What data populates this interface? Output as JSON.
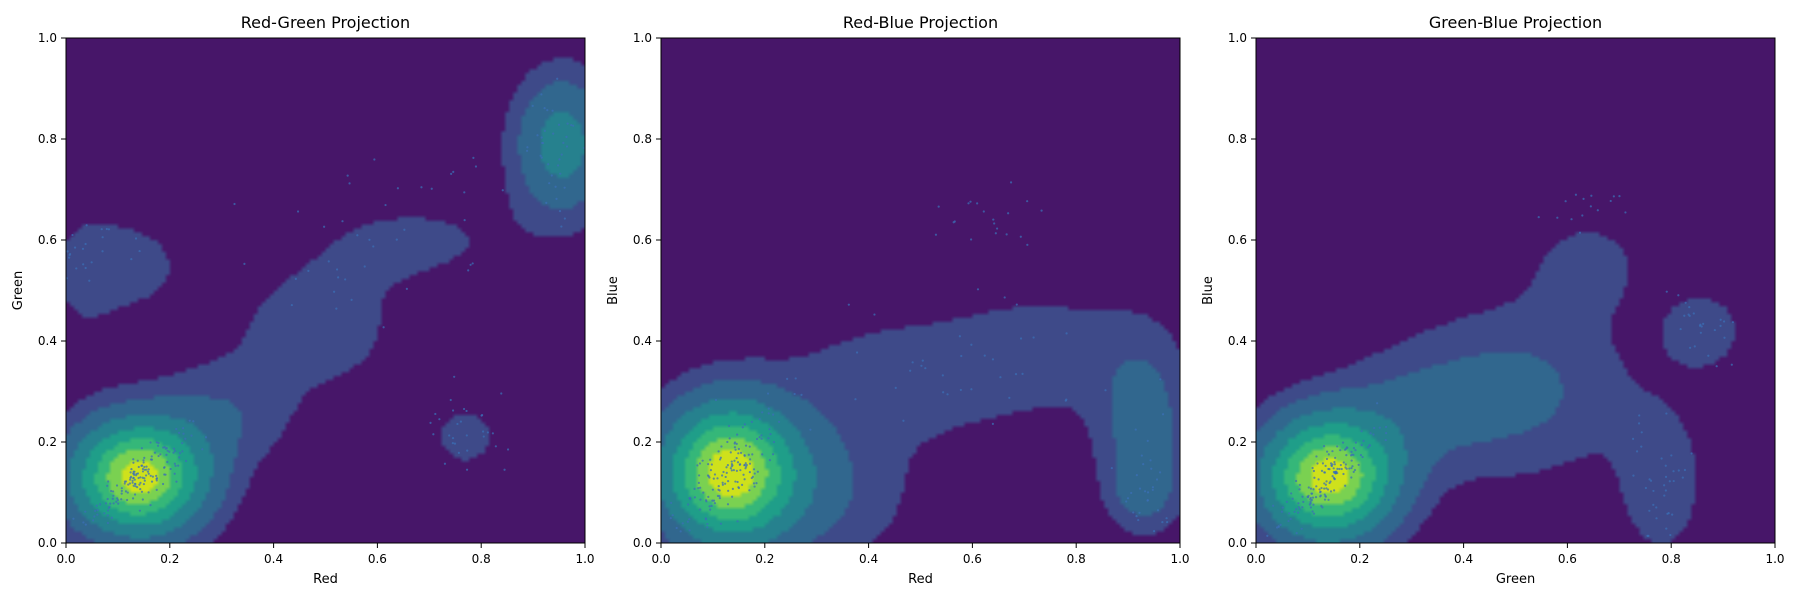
{
  "figure": {
    "colors": {
      "background": "#ffffff",
      "scatter": "#3b6fb5",
      "levels": [
        "#471669",
        "#3e4a89",
        "#31678e",
        "#26818e",
        "#1f9e89",
        "#35b779",
        "#7ad151",
        "#cfe11c"
      ]
    }
  },
  "chart_data": [
    {
      "type": "contour",
      "title": "Red-Green Projection",
      "xlabel": "Red",
      "ylabel": "Green",
      "xlim": [
        0,
        1
      ],
      "ylim": [
        0,
        1
      ],
      "xticks": [
        "0.0",
        "0.2",
        "0.4",
        "0.6",
        "0.8",
        "1.0"
      ],
      "yticks": [
        "0.0",
        "0.2",
        "0.4",
        "0.6",
        "0.8",
        "1.0"
      ],
      "components": [
        {
          "x": 0.14,
          "y": 0.13,
          "sx": 0.085,
          "sy": 0.075,
          "w": 1.0
        },
        {
          "x": 0.955,
          "y": 0.79,
          "sx": 0.06,
          "sy": 0.09,
          "w": 0.36
        },
        {
          "x": 0.48,
          "y": 0.42,
          "sx": 0.13,
          "sy": 0.1,
          "w": 0.09
        },
        {
          "x": 0.68,
          "y": 0.6,
          "sx": 0.16,
          "sy": 0.07,
          "w": 0.07
        },
        {
          "x": 0.12,
          "y": 0.55,
          "sx": 0.08,
          "sy": 0.07,
          "w": 0.09
        },
        {
          "x": 0.77,
          "y": 0.21,
          "sx": 0.05,
          "sy": 0.05,
          "w": 0.09
        },
        {
          "x": 0.03,
          "y": 0.52,
          "sx": 0.05,
          "sy": 0.12,
          "w": 0.05
        },
        {
          "x": 0.3,
          "y": 0.25,
          "sx": 0.09,
          "sy": 0.07,
          "w": 0.12
        }
      ],
      "scatter_clusters": [
        {
          "x": 0.14,
          "y": 0.13,
          "sx": 0.05,
          "sy": 0.045,
          "n": 160,
          "corr": 0.85
        },
        {
          "x": 0.95,
          "y": 0.78,
          "sx": 0.03,
          "sy": 0.06,
          "n": 40,
          "corr": 0.0
        },
        {
          "x": 0.6,
          "y": 0.6,
          "sx": 0.15,
          "sy": 0.08,
          "n": 40,
          "corr": 0.3
        },
        {
          "x": 0.77,
          "y": 0.21,
          "sx": 0.04,
          "sy": 0.04,
          "n": 30,
          "corr": 0.0
        },
        {
          "x": 0.05,
          "y": 0.6,
          "sx": 0.04,
          "sy": 0.05,
          "n": 25,
          "corr": 0.0
        }
      ]
    },
    {
      "type": "contour",
      "title": "Red-Blue Projection",
      "xlabel": "Red",
      "ylabel": "Blue",
      "xlim": [
        0,
        1
      ],
      "ylim": [
        0,
        1
      ],
      "xticks": [
        "0.0",
        "0.2",
        "0.4",
        "0.6",
        "0.8",
        "1.0"
      ],
      "yticks": [
        "0.0",
        "0.2",
        "0.4",
        "0.6",
        "0.8",
        "1.0"
      ],
      "components": [
        {
          "x": 0.13,
          "y": 0.14,
          "sx": 0.085,
          "sy": 0.09,
          "w": 1.0
        },
        {
          "x": 0.93,
          "y": 0.22,
          "sx": 0.06,
          "sy": 0.12,
          "w": 0.2
        },
        {
          "x": 0.93,
          "y": 0.1,
          "sx": 0.04,
          "sy": 0.04,
          "w": 0.12
        },
        {
          "x": 0.45,
          "y": 0.32,
          "sx": 0.16,
          "sy": 0.09,
          "w": 0.1
        },
        {
          "x": 0.75,
          "y": 0.38,
          "sx": 0.14,
          "sy": 0.09,
          "w": 0.09
        },
        {
          "x": 0.3,
          "y": 0.1,
          "sx": 0.12,
          "sy": 0.1,
          "w": 0.14
        }
      ],
      "scatter_clusters": [
        {
          "x": 0.13,
          "y": 0.14,
          "sx": 0.05,
          "sy": 0.06,
          "n": 160,
          "corr": 0.7
        },
        {
          "x": 0.62,
          "y": 0.64,
          "sx": 0.05,
          "sy": 0.03,
          "n": 20,
          "corr": 0.0
        },
        {
          "x": 0.93,
          "y": 0.12,
          "sx": 0.03,
          "sy": 0.05,
          "n": 30,
          "corr": 0.0
        },
        {
          "x": 0.55,
          "y": 0.35,
          "sx": 0.2,
          "sy": 0.08,
          "n": 40,
          "corr": 0.0
        }
      ]
    },
    {
      "type": "contour",
      "title": "Green-Blue Projection",
      "xlabel": "Green",
      "ylabel": "Blue",
      "xlim": [
        0,
        1
      ],
      "ylim": [
        0,
        1
      ],
      "xticks": [
        "0.0",
        "0.2",
        "0.4",
        "0.6",
        "0.8",
        "1.0"
      ],
      "yticks": [
        "0.0",
        "0.2",
        "0.4",
        "0.6",
        "0.8",
        "1.0"
      ],
      "components": [
        {
          "x": 0.14,
          "y": 0.13,
          "sx": 0.085,
          "sy": 0.08,
          "w": 1.0
        },
        {
          "x": 0.5,
          "y": 0.3,
          "sx": 0.14,
          "sy": 0.11,
          "w": 0.17
        },
        {
          "x": 0.78,
          "y": 0.12,
          "sx": 0.06,
          "sy": 0.11,
          "w": 0.11
        },
        {
          "x": 0.86,
          "y": 0.42,
          "sx": 0.05,
          "sy": 0.05,
          "w": 0.13
        },
        {
          "x": 0.64,
          "y": 0.55,
          "sx": 0.09,
          "sy": 0.08,
          "w": 0.08
        },
        {
          "x": 0.3,
          "y": 0.26,
          "sx": 0.1,
          "sy": 0.08,
          "w": 0.12
        }
      ],
      "scatter_clusters": [
        {
          "x": 0.14,
          "y": 0.13,
          "sx": 0.05,
          "sy": 0.05,
          "n": 160,
          "corr": 0.85
        },
        {
          "x": 0.78,
          "y": 0.1,
          "sx": 0.03,
          "sy": 0.08,
          "n": 40,
          "corr": 0.0
        },
        {
          "x": 0.85,
          "y": 0.42,
          "sx": 0.04,
          "sy": 0.04,
          "n": 25,
          "corr": 0.0
        },
        {
          "x": 0.65,
          "y": 0.66,
          "sx": 0.04,
          "sy": 0.02,
          "n": 15,
          "corr": 0.0
        }
      ]
    }
  ]
}
